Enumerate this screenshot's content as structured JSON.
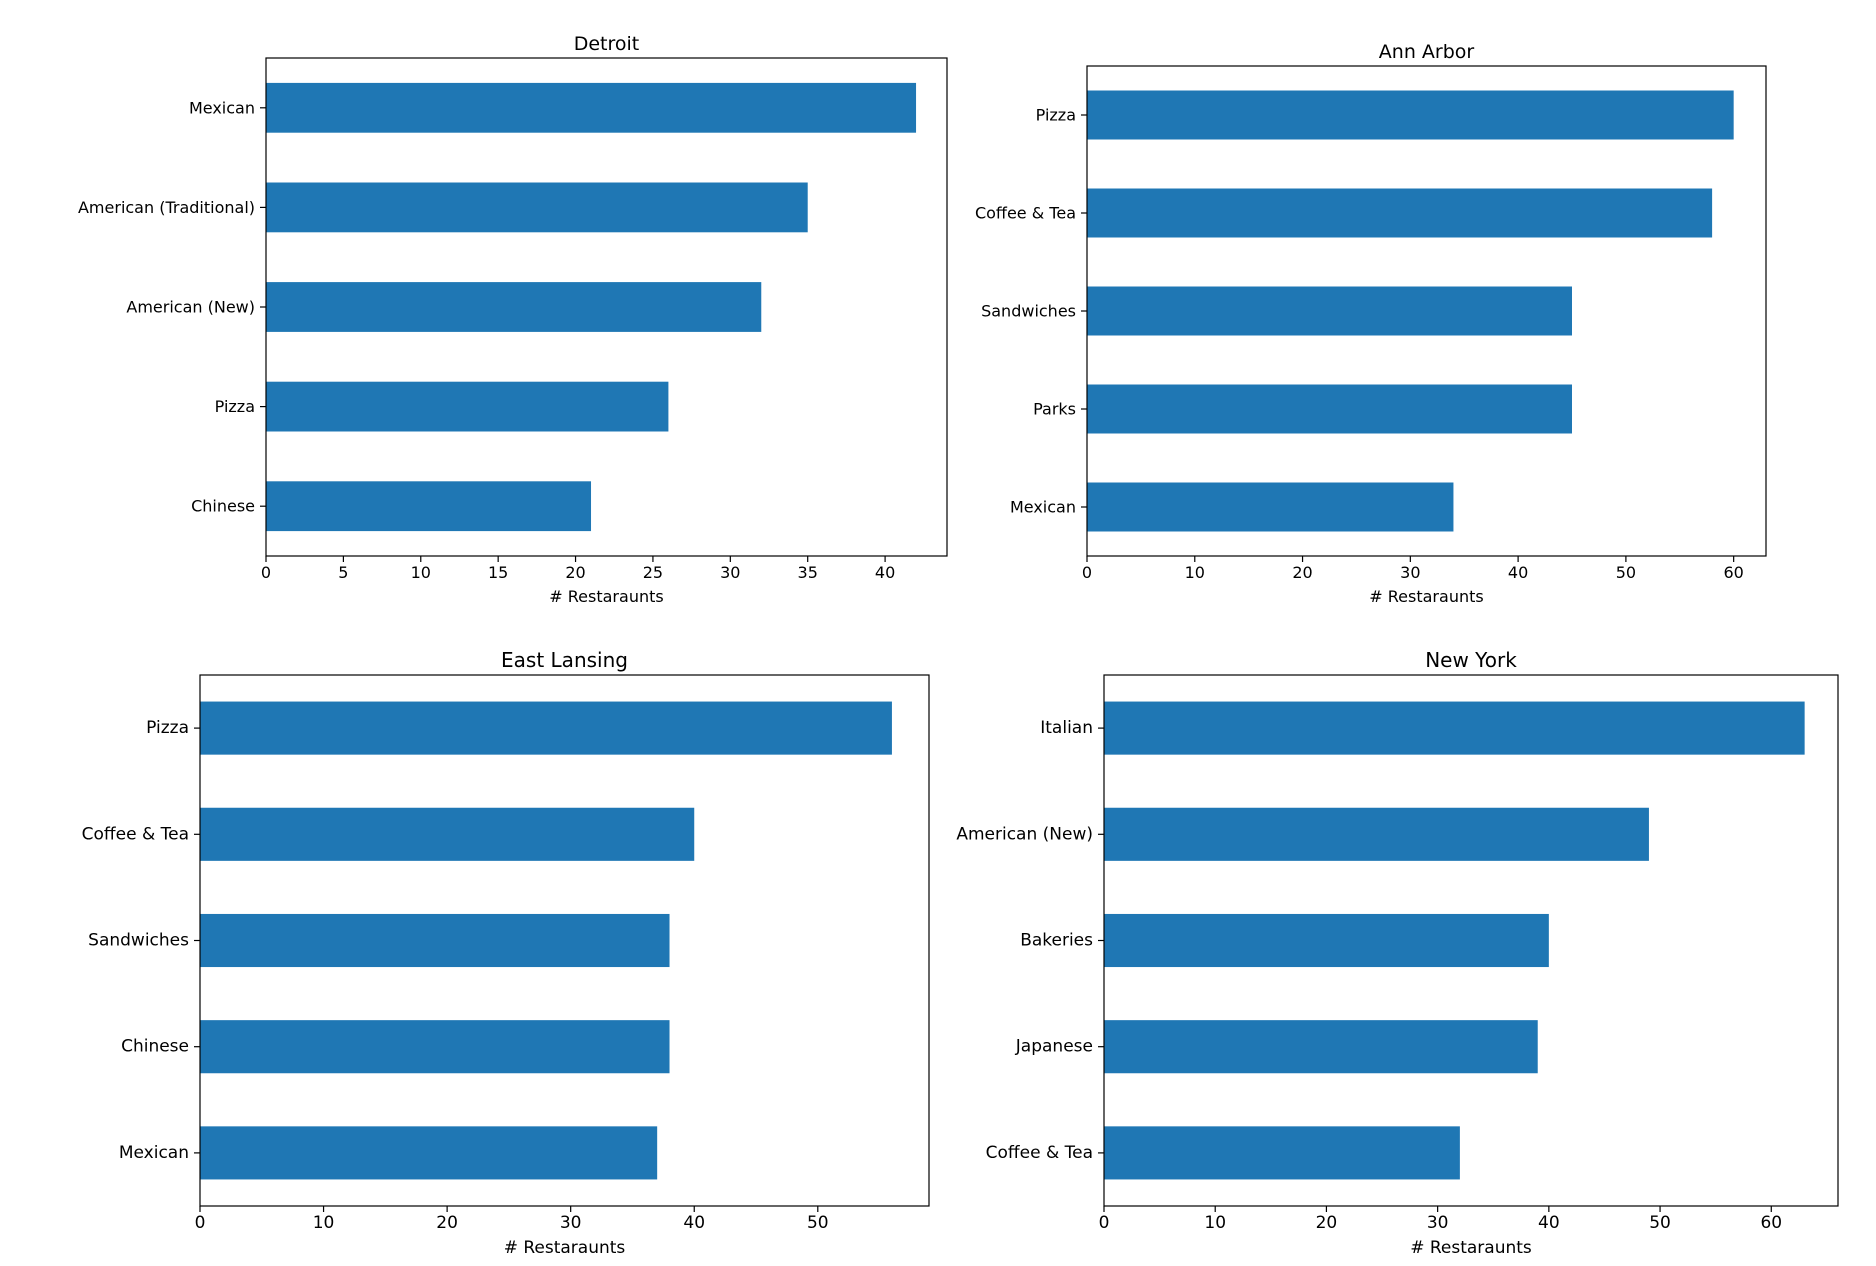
{
  "chart_data": [
    {
      "type": "bar",
      "orientation": "horizontal",
      "title": "Detroit",
      "xlabel": "# Restaraunts",
      "ylabel": "",
      "categories": [
        "Mexican",
        "American (Traditional)",
        "American (New)",
        "Pizza",
        "Chinese"
      ],
      "values": [
        42,
        35,
        32,
        26,
        21
      ],
      "xlim": [
        0,
        44
      ],
      "xticks": [
        0,
        5,
        10,
        15,
        20,
        25,
        30,
        35,
        40
      ],
      "grid": false,
      "bar_color": "#1f77b4"
    },
    {
      "type": "bar",
      "orientation": "horizontal",
      "title": "Ann Arbor",
      "xlabel": "# Restaraunts",
      "ylabel": "",
      "categories": [
        "Pizza",
        "Coffee & Tea",
        "Sandwiches",
        "Parks",
        "Mexican"
      ],
      "values": [
        60,
        58,
        45,
        45,
        34
      ],
      "xlim": [
        0,
        63
      ],
      "xticks": [
        0,
        10,
        20,
        30,
        40,
        50,
        60
      ],
      "grid": false,
      "bar_color": "#1f77b4"
    },
    {
      "type": "bar",
      "orientation": "horizontal",
      "title": "East Lansing",
      "xlabel": "# Restaraunts",
      "ylabel": "",
      "categories": [
        "Pizza",
        "Coffee & Tea",
        "Sandwiches",
        "Chinese",
        "Mexican"
      ],
      "values": [
        56,
        40,
        38,
        38,
        37
      ],
      "xlim": [
        0,
        59
      ],
      "xticks": [
        0,
        10,
        20,
        30,
        40,
        50
      ],
      "grid": false,
      "bar_color": "#1f77b4"
    },
    {
      "type": "bar",
      "orientation": "horizontal",
      "title": "New York",
      "xlabel": "# Restaraunts",
      "ylabel": "",
      "categories": [
        "Italian",
        "American (New)",
        "Bakeries",
        "Japanese",
        "Coffee & Tea"
      ],
      "values": [
        63,
        49,
        40,
        39,
        32
      ],
      "xlim": [
        0,
        66
      ],
      "xticks": [
        0,
        10,
        20,
        30,
        40,
        50,
        60
      ],
      "grid": false,
      "bar_color": "#1f77b4"
    }
  ]
}
